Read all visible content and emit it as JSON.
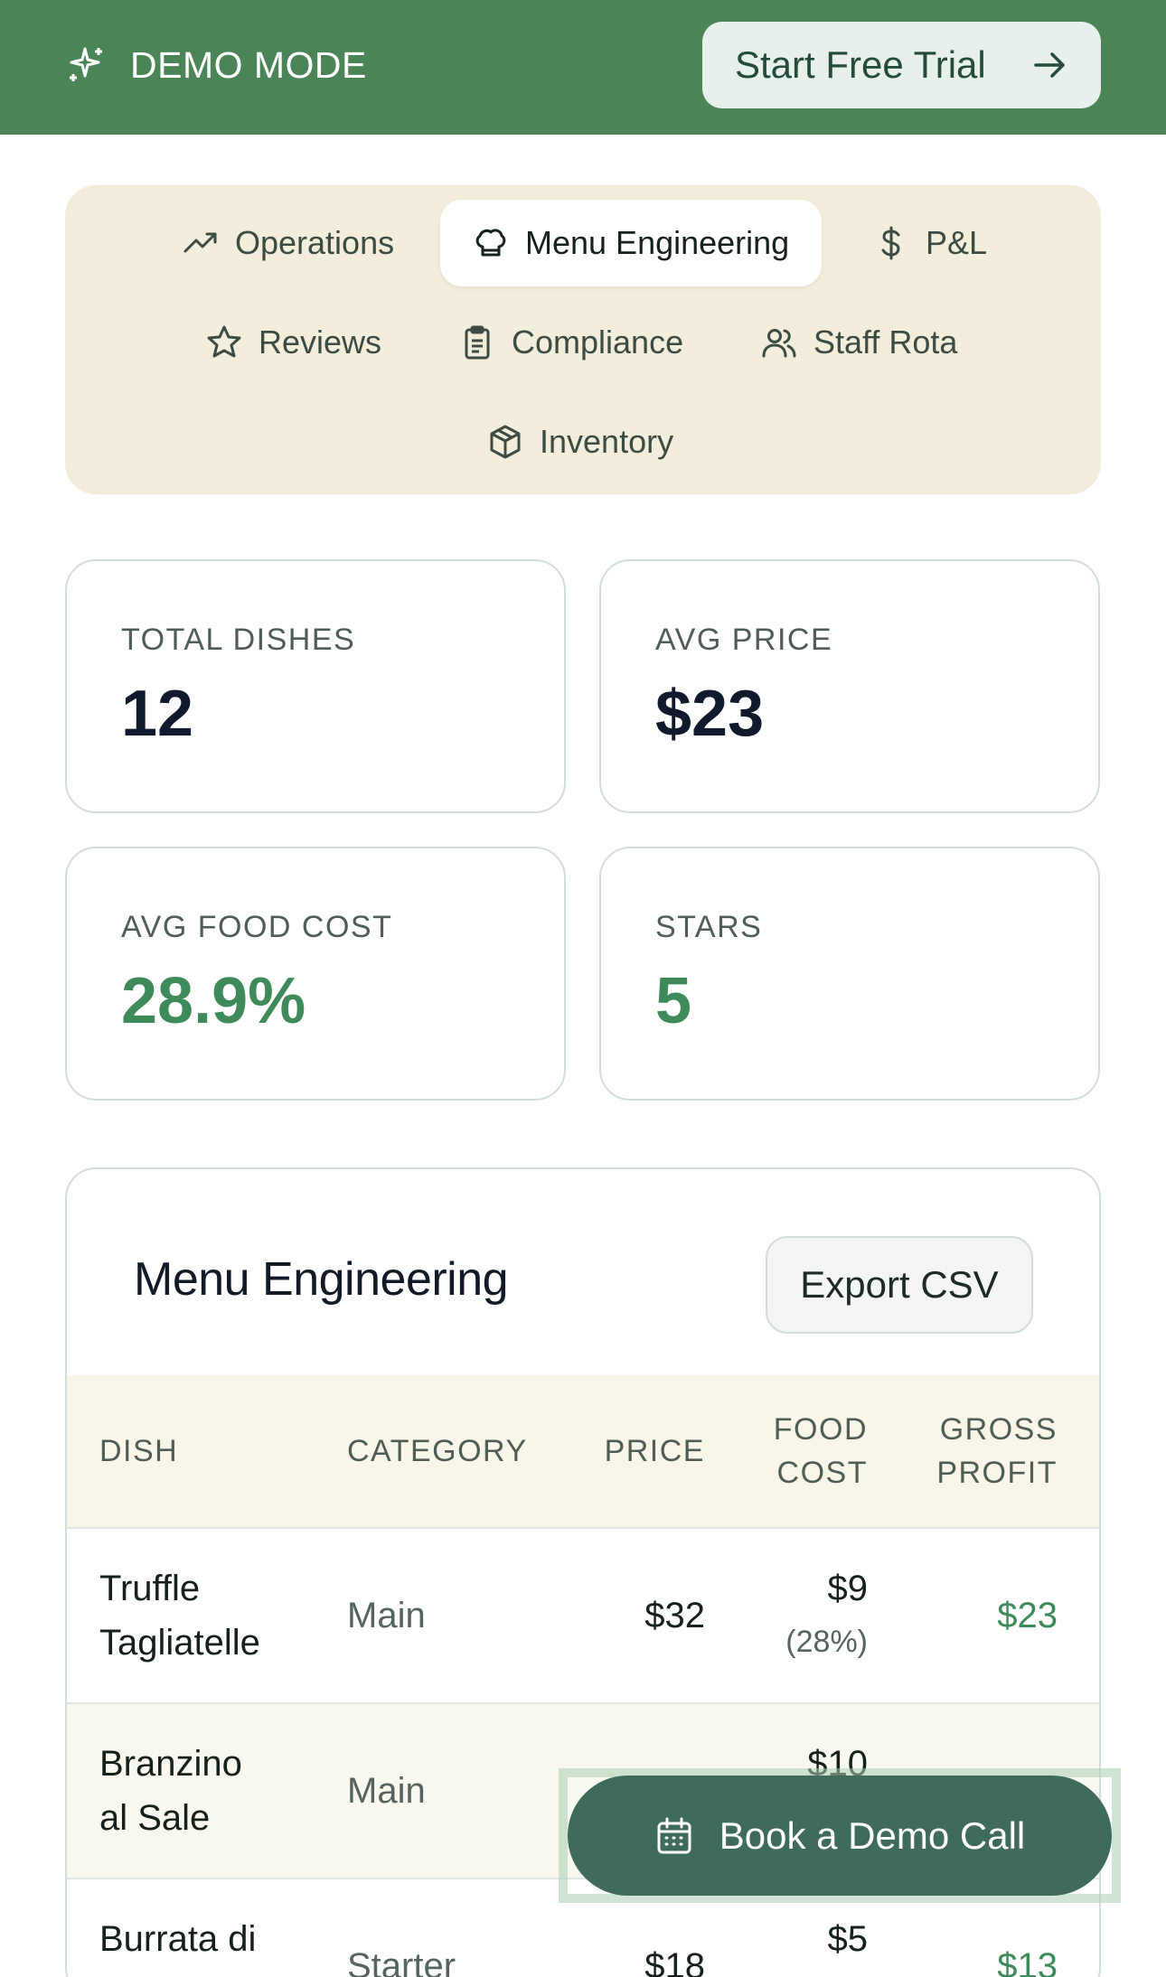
{
  "header": {
    "demo_label": "DEMO MODE",
    "trial_label": "Start Free Trial"
  },
  "tabs": [
    {
      "label": "Operations",
      "icon": "trending-up-icon",
      "active": false
    },
    {
      "label": "Menu Engineering",
      "icon": "chef-hat-icon",
      "active": true
    },
    {
      "label": "P&L",
      "icon": "dollar-icon",
      "active": false
    },
    {
      "label": "Reviews",
      "icon": "star-icon",
      "active": false
    },
    {
      "label": "Compliance",
      "icon": "clipboard-icon",
      "active": false
    },
    {
      "label": "Staff Rota",
      "icon": "users-icon",
      "active": false
    },
    {
      "label": "Inventory",
      "icon": "package-icon",
      "active": false
    }
  ],
  "stats": [
    {
      "label": "TOTAL DISHES",
      "value": "12"
    },
    {
      "label": "AVG PRICE",
      "value": "$23"
    },
    {
      "label": "AVG FOOD COST",
      "value": "28.9%"
    },
    {
      "label": "STARS",
      "value": "5"
    }
  ],
  "menu": {
    "title": "Menu Engineering",
    "export_label": "Export CSV",
    "columns": {
      "dish": "DISH",
      "category": "CATEGORY",
      "price": "PRICE",
      "food_cost_1": "FOOD",
      "food_cost_2": "COST",
      "gross_profit_1": "GROSS",
      "gross_profit_2": "PROFIT"
    },
    "rows": [
      {
        "dish_1": "Truffle",
        "dish_2": "Tagliatelle",
        "category": "Main",
        "price": "$32",
        "food_cost": "$9",
        "food_cost_pct": "(28%)",
        "gross_profit": "$23"
      },
      {
        "dish_1": "Branzino",
        "dish_2": "al Sale",
        "category": "Main",
        "price": "",
        "food_cost": "$10",
        "food_cost_pct": "",
        "gross_profit": ""
      },
      {
        "dish_1": "Burrata di",
        "dish_2": "",
        "category": "Starter",
        "price": "$18",
        "food_cost": "$5",
        "food_cost_pct": "",
        "gross_profit": "$13"
      }
    ]
  },
  "cta": {
    "label": "Book a Demo Call",
    "icon": "calendar-icon"
  },
  "colors": {
    "brand_green": "#4a8457",
    "accent_green": "#3f8a5b",
    "cta_green": "#3e6b5a",
    "tab_bg": "#f3eedb"
  }
}
